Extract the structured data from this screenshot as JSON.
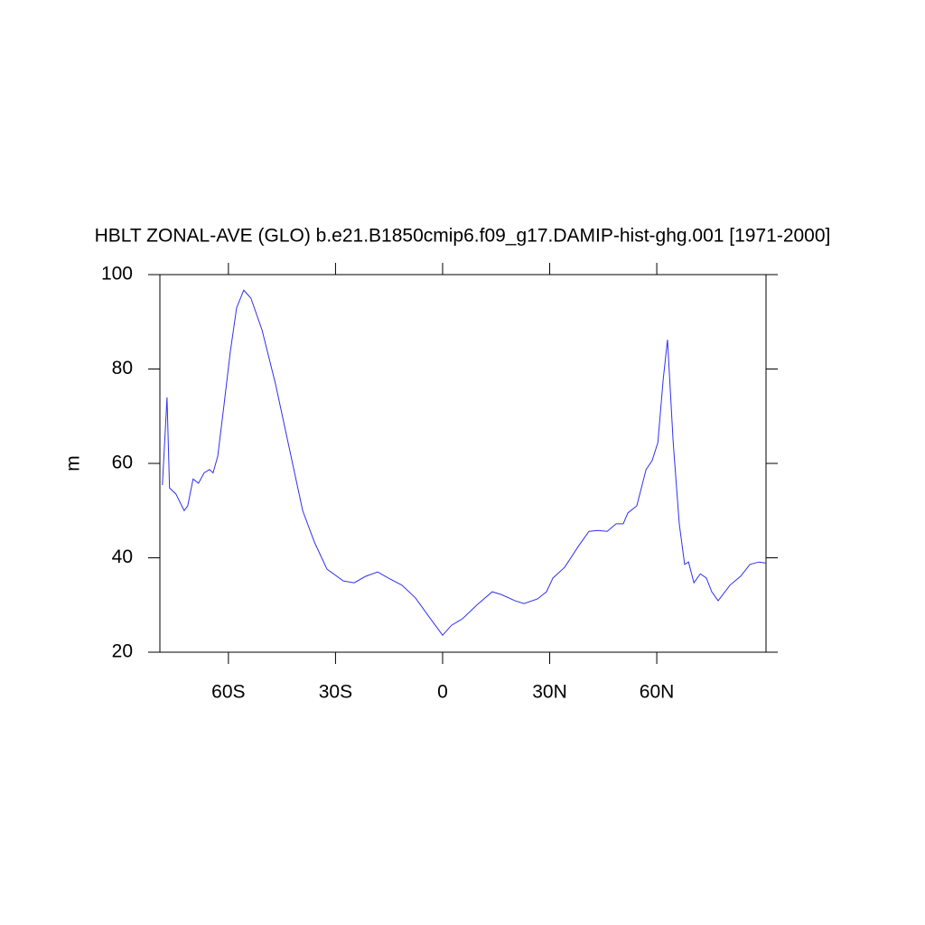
{
  "chart_data": {
    "type": "line",
    "title": "HBLT ZONAL-AVE (GLO) b.e21.B1850cmip6.f09_g17.DAMIP-hist-ghg.001 [1971-2000]",
    "y_label": "m",
    "xlim": [
      -79.2,
      90.6
    ],
    "ylim": [
      20,
      100
    ],
    "xticks": [
      {
        "value": -60,
        "label": "60S"
      },
      {
        "value": -30,
        "label": "30S"
      },
      0,
      {
        "value": 30,
        "label": "30N"
      },
      {
        "value": 60,
        "label": "60N"
      }
    ],
    "yticks": [
      20,
      40,
      60,
      80,
      100
    ],
    "series": [
      {
        "color": "#3030f0",
        "x": [
          -78.5,
          -77.2,
          -76.5,
          -74.7,
          -72.4,
          -71.4,
          -69.9,
          -68.4,
          -66.8,
          -65.3,
          -64.3,
          -63,
          -61.3,
          -59.5,
          -57.7,
          -55.7,
          -53.7,
          -50.6,
          -46.8,
          -43,
          -39.2,
          -35.9,
          -32.4,
          -27.8,
          -24.8,
          -21.5,
          -18.2,
          -15.2,
          -11.4,
          -7.6,
          -3.8,
          0,
          2.5,
          5.6,
          9.6,
          13.9,
          16.5,
          20.3,
          22.8,
          26.6,
          29.1,
          30.9,
          34.2,
          38,
          41,
          43.5,
          46.1,
          48.6,
          50.6,
          51.9,
          54.4,
          57,
          58.7,
          60.3,
          61.8,
          63,
          64.6,
          66.3,
          67.8,
          68.9,
          70.4,
          72.2,
          73.9,
          75.4,
          77.2,
          80.5,
          83.5,
          86.1,
          88.6,
          90.4
        ],
        "values": [
          55.4,
          74,
          54.8,
          53.5,
          50,
          51,
          56.7,
          55.8,
          58,
          58.7,
          58,
          61.5,
          72,
          83.5,
          93,
          96.7,
          95,
          88.3,
          76.8,
          63.4,
          50,
          43.3,
          37.6,
          35.1,
          34.7,
          36.1,
          37,
          35.7,
          34.2,
          31.5,
          27.5,
          23.6,
          25.7,
          27.1,
          30,
          32.8,
          32.2,
          30.9,
          30.3,
          31.3,
          32.8,
          35.7,
          38,
          42.4,
          45.6,
          45.8,
          45.6,
          47.2,
          47.2,
          49.5,
          51,
          58.7,
          60.6,
          64.4,
          77.8,
          86.2,
          64.4,
          47.2,
          38.6,
          39.1,
          34.7,
          36.6,
          35.7,
          32.8,
          30.9,
          34.2,
          36.1,
          38.6,
          39.1,
          38.9
        ]
      }
    ]
  }
}
